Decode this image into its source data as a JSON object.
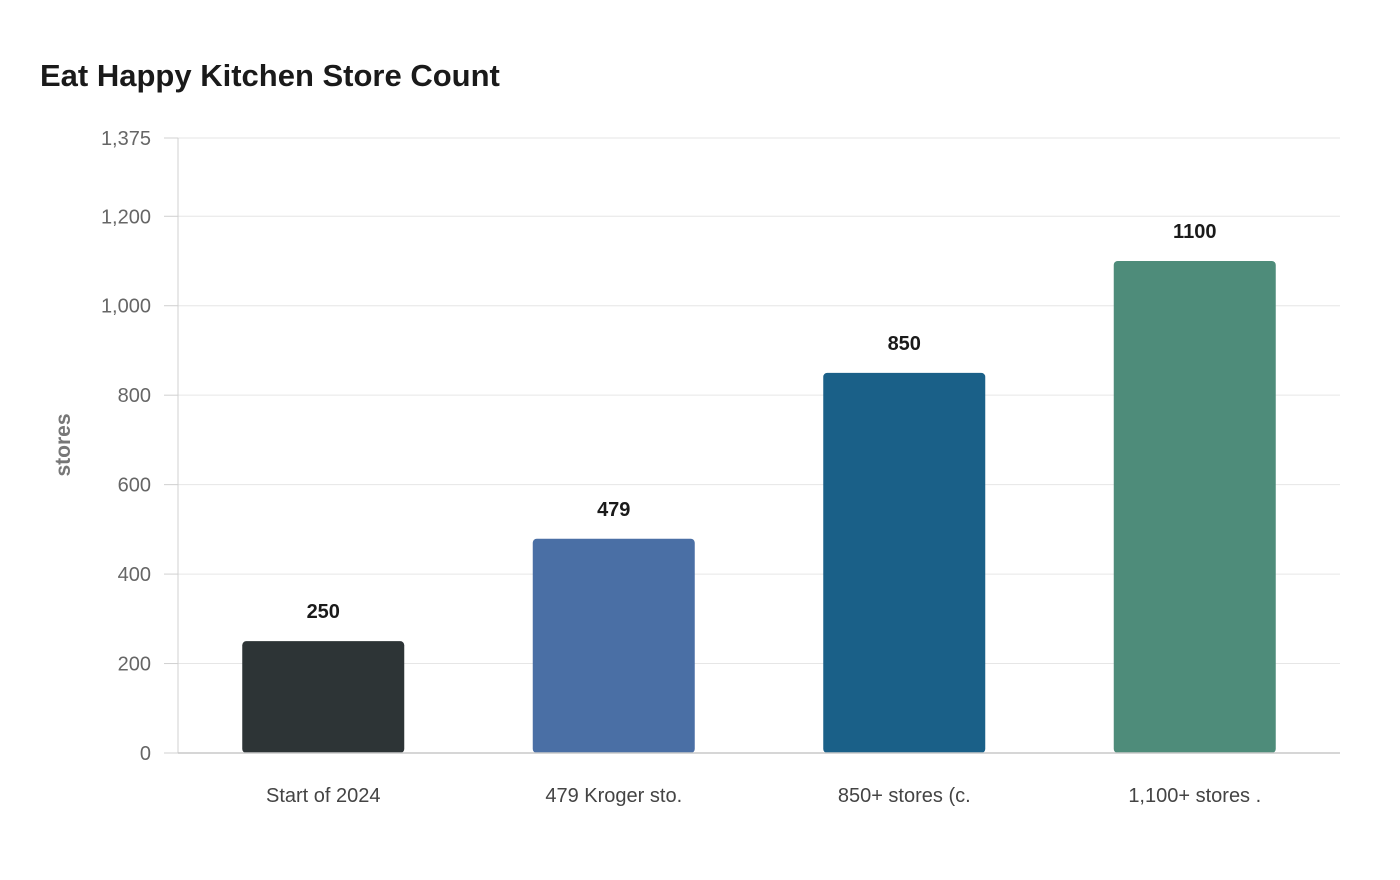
{
  "chart_data": {
    "type": "bar",
    "title": "Eat Happy Kitchen Store Count",
    "xlabel": "",
    "ylabel": "stores",
    "categories": [
      "Start of 2024",
      "479 Kroger sto.",
      "850+ stores (c.",
      "1,100+ stores ."
    ],
    "values": [
      250,
      479,
      850,
      1100
    ],
    "value_labels": [
      "250",
      "479",
      "850",
      "1100"
    ],
    "colors": [
      "#2d3436",
      "#4a6fa5",
      "#1a6088",
      "#4e8c7a"
    ],
    "ylim": [
      0,
      1375
    ],
    "yticks": [
      0,
      200,
      400,
      600,
      800,
      1000,
      1200,
      1375
    ],
    "ytick_labels": [
      "0",
      "200",
      "400",
      "600",
      "800",
      "1,000",
      "1,200",
      "1,375"
    ],
    "grid": true,
    "legend": "none"
  }
}
